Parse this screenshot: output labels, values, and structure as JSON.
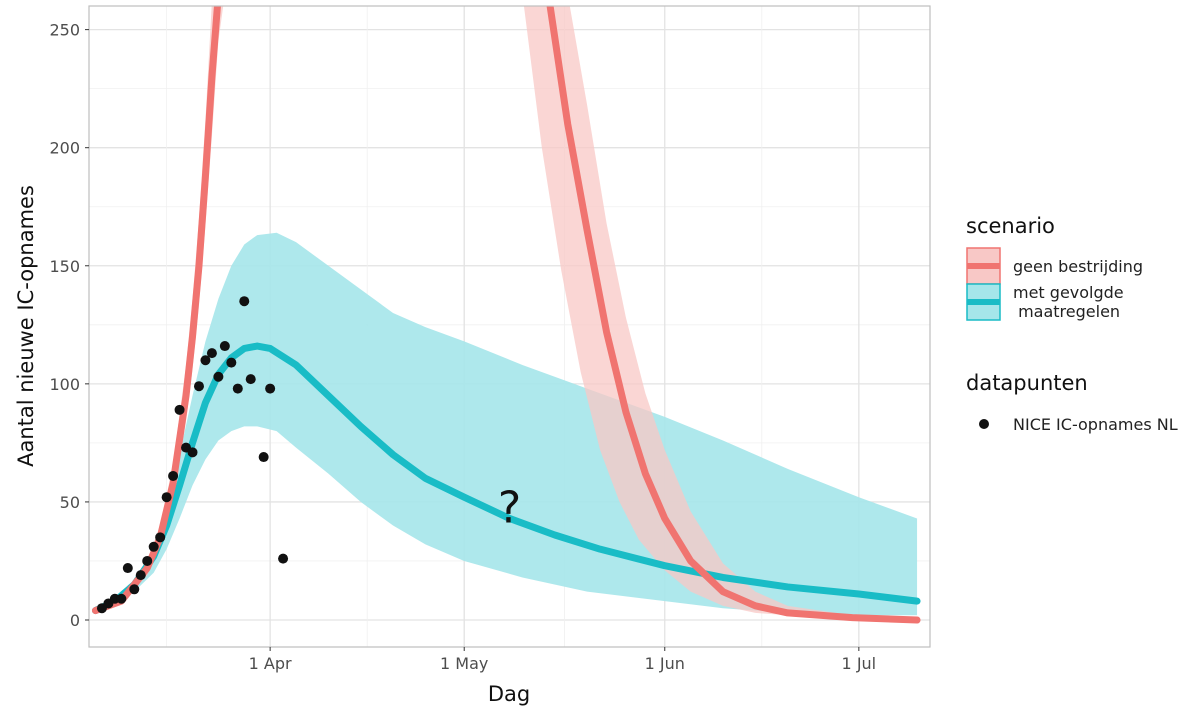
{
  "chart_data": {
    "type": "line",
    "xlabel": "Dag",
    "ylabel": "Aantal nieuwe IC-opnames",
    "x_type": "date",
    "xlim": [
      "2020-03-04",
      "2020-07-12"
    ],
    "ylim": [
      0,
      260
    ],
    "grid": true,
    "x_ticks": [
      {
        "date": "2020-04-01",
        "label": "1 Apr"
      },
      {
        "date": "2020-05-01",
        "label": "1 May"
      },
      {
        "date": "2020-06-01",
        "label": "1 Jun"
      },
      {
        "date": "2020-07-01",
        "label": "1 Jul"
      }
    ],
    "y_ticks": [
      0,
      50,
      100,
      150,
      200,
      250
    ],
    "annotation": "?",
    "annotation_at": {
      "x": "2020-05-08",
      "y": 48
    },
    "legend_position": "right",
    "legend": [
      {
        "title": "scenario",
        "entries": [
          {
            "label": "geen bestrijding",
            "color": "#f07470",
            "fill": "#f8c8c6"
          },
          {
            "label": "met gevolgde\n maatregelen",
            "color": "#19bcc6",
            "fill": "#a5e6ea"
          }
        ]
      },
      {
        "title": "datapunten",
        "entries": [
          {
            "label": "NICE IC-opnames NL",
            "color": "#111111"
          }
        ]
      }
    ],
    "series": [
      {
        "name": "geen bestrijding",
        "color": "#f07470",
        "band_color": "#f8c8c6",
        "segments": [
          {
            "line": [
              [
                "2020-03-05",
                4
              ],
              [
                "2020-03-09",
                8
              ],
              [
                "2020-03-13",
                22
              ],
              [
                "2020-03-15",
                35
              ],
              [
                "2020-03-17",
                58
              ],
              [
                "2020-03-19",
                95
              ],
              [
                "2020-03-20",
                120
              ],
              [
                "2020-03-21",
                150
              ],
              [
                "2020-03-22",
                188
              ],
              [
                "2020-03-23",
                230
              ],
              [
                "2020-03-24",
                265
              ]
            ],
            "upper": [
              [
                "2020-03-05",
                5
              ],
              [
                "2020-03-09",
                10
              ],
              [
                "2020-03-13",
                25
              ],
              [
                "2020-03-15",
                40
              ],
              [
                "2020-03-17",
                66
              ],
              [
                "2020-03-19",
                108
              ],
              [
                "2020-03-20",
                136
              ],
              [
                "2020-03-21",
                170
              ],
              [
                "2020-03-22",
                212
              ],
              [
                "2020-03-23",
                262
              ]
            ],
            "lower": [
              [
                "2020-03-05",
                3
              ],
              [
                "2020-03-09",
                7
              ],
              [
                "2020-03-13",
                19
              ],
              [
                "2020-03-15",
                30
              ],
              [
                "2020-03-17",
                50
              ],
              [
                "2020-03-19",
                84
              ],
              [
                "2020-03-20",
                106
              ],
              [
                "2020-03-21",
                133
              ],
              [
                "2020-03-22",
                167
              ],
              [
                "2020-03-23",
                205
              ],
              [
                "2020-03-24",
                245
              ],
              [
                "2020-03-25",
                265
              ]
            ]
          },
          {
            "line": [
              [
                "2020-05-14",
                265
              ],
              [
                "2020-05-17",
                210
              ],
              [
                "2020-05-20",
                165
              ],
              [
                "2020-05-23",
                122
              ],
              [
                "2020-05-26",
                88
              ],
              [
                "2020-05-29",
                62
              ],
              [
                "2020-06-01",
                43
              ],
              [
                "2020-06-05",
                25
              ],
              [
                "2020-06-10",
                12
              ],
              [
                "2020-06-15",
                6
              ],
              [
                "2020-06-20",
                3
              ],
              [
                "2020-06-30",
                1
              ],
              [
                "2020-07-10",
                0
              ]
            ],
            "upper": [
              [
                "2020-05-17",
                265
              ],
              [
                "2020-05-20",
                218
              ],
              [
                "2020-05-23",
                168
              ],
              [
                "2020-05-26",
                128
              ],
              [
                "2020-05-29",
                96
              ],
              [
                "2020-06-01",
                72
              ],
              [
                "2020-06-05",
                46
              ],
              [
                "2020-06-10",
                24
              ],
              [
                "2020-06-15",
                12
              ],
              [
                "2020-06-20",
                6
              ],
              [
                "2020-06-30",
                2
              ],
              [
                "2020-07-10",
                1
              ]
            ],
            "lower": [
              [
                "2020-05-10",
                265
              ],
              [
                "2020-05-13",
                200
              ],
              [
                "2020-05-16",
                148
              ],
              [
                "2020-05-19",
                105
              ],
              [
                "2020-05-22",
                72
              ],
              [
                "2020-05-25",
                50
              ],
              [
                "2020-05-28",
                34
              ],
              [
                "2020-06-01",
                21
              ],
              [
                "2020-06-05",
                12
              ],
              [
                "2020-06-10",
                6
              ],
              [
                "2020-06-15",
                3
              ],
              [
                "2020-06-30",
                0
              ],
              [
                "2020-07-10",
                0
              ]
            ]
          }
        ]
      },
      {
        "name": "met gevolgde\n maatregelen",
        "color": "#19bcc6",
        "band_color": "#a5e6ea",
        "line": [
          [
            "2020-03-05",
            4
          ],
          [
            "2020-03-08",
            8
          ],
          [
            "2020-03-11",
            15
          ],
          [
            "2020-03-14",
            27
          ],
          [
            "2020-03-16",
            40
          ],
          [
            "2020-03-18",
            57
          ],
          [
            "2020-03-20",
            75
          ],
          [
            "2020-03-22",
            92
          ],
          [
            "2020-03-24",
            104
          ],
          [
            "2020-03-26",
            111
          ],
          [
            "2020-03-28",
            115
          ],
          [
            "2020-03-30",
            116
          ],
          [
            "2020-04-01",
            115
          ],
          [
            "2020-04-05",
            108
          ],
          [
            "2020-04-10",
            95
          ],
          [
            "2020-04-15",
            82
          ],
          [
            "2020-04-20",
            70
          ],
          [
            "2020-04-25",
            60
          ],
          [
            "2020-05-01",
            52
          ],
          [
            "2020-05-08",
            43
          ],
          [
            "2020-05-15",
            36
          ],
          [
            "2020-05-22",
            30
          ],
          [
            "2020-06-01",
            23
          ],
          [
            "2020-06-10",
            18
          ],
          [
            "2020-06-20",
            14
          ],
          [
            "2020-07-01",
            11
          ],
          [
            "2020-07-10",
            8
          ]
        ],
        "upper": [
          [
            "2020-03-05",
            5
          ],
          [
            "2020-03-08",
            9
          ],
          [
            "2020-03-11",
            17
          ],
          [
            "2020-03-14",
            30
          ],
          [
            "2020-03-16",
            47
          ],
          [
            "2020-03-18",
            70
          ],
          [
            "2020-03-20",
            95
          ],
          [
            "2020-03-22",
            118
          ],
          [
            "2020-03-24",
            136
          ],
          [
            "2020-03-26",
            150
          ],
          [
            "2020-03-28",
            159
          ],
          [
            "2020-03-30",
            163
          ],
          [
            "2020-04-02",
            164
          ],
          [
            "2020-04-05",
            160
          ],
          [
            "2020-04-10",
            150
          ],
          [
            "2020-04-15",
            140
          ],
          [
            "2020-04-20",
            130
          ],
          [
            "2020-04-25",
            124
          ],
          [
            "2020-05-01",
            118
          ],
          [
            "2020-05-10",
            108
          ],
          [
            "2020-05-20",
            98
          ],
          [
            "2020-06-01",
            86
          ],
          [
            "2020-06-10",
            76
          ],
          [
            "2020-06-20",
            64
          ],
          [
            "2020-07-01",
            52
          ],
          [
            "2020-07-10",
            43
          ]
        ],
        "lower": [
          [
            "2020-03-05",
            3
          ],
          [
            "2020-03-08",
            6
          ],
          [
            "2020-03-11",
            12
          ],
          [
            "2020-03-14",
            20
          ],
          [
            "2020-03-16",
            30
          ],
          [
            "2020-03-18",
            43
          ],
          [
            "2020-03-20",
            57
          ],
          [
            "2020-03-22",
            68
          ],
          [
            "2020-03-24",
            76
          ],
          [
            "2020-03-26",
            80
          ],
          [
            "2020-03-28",
            82
          ],
          [
            "2020-03-30",
            82
          ],
          [
            "2020-04-02",
            80
          ],
          [
            "2020-04-05",
            73
          ],
          [
            "2020-04-10",
            62
          ],
          [
            "2020-04-15",
            50
          ],
          [
            "2020-04-20",
            40
          ],
          [
            "2020-04-25",
            32
          ],
          [
            "2020-05-01",
            25
          ],
          [
            "2020-05-10",
            18
          ],
          [
            "2020-05-20",
            12
          ],
          [
            "2020-06-01",
            8
          ],
          [
            "2020-06-10",
            5
          ],
          [
            "2020-06-20",
            3
          ],
          [
            "2020-07-01",
            2
          ],
          [
            "2020-07-10",
            2
          ]
        ]
      }
    ],
    "points": {
      "name": "NICE IC-opnames NL",
      "color": "#111111",
      "data": [
        [
          "2020-03-06",
          5
        ],
        [
          "2020-03-07",
          7
        ],
        [
          "2020-03-08",
          9
        ],
        [
          "2020-03-09",
          9
        ],
        [
          "2020-03-10",
          22
        ],
        [
          "2020-03-11",
          13
        ],
        [
          "2020-03-12",
          19
        ],
        [
          "2020-03-13",
          25
        ],
        [
          "2020-03-14",
          31
        ],
        [
          "2020-03-15",
          35
        ],
        [
          "2020-03-16",
          52
        ],
        [
          "2020-03-17",
          61
        ],
        [
          "2020-03-18",
          89
        ],
        [
          "2020-03-19",
          73
        ],
        [
          "2020-03-20",
          71
        ],
        [
          "2020-03-21",
          99
        ],
        [
          "2020-03-22",
          110
        ],
        [
          "2020-03-23",
          113
        ],
        [
          "2020-03-24",
          103
        ],
        [
          "2020-03-25",
          116
        ],
        [
          "2020-03-26",
          109
        ],
        [
          "2020-03-27",
          98
        ],
        [
          "2020-03-28",
          135
        ],
        [
          "2020-03-29",
          102
        ],
        [
          "2020-03-31",
          69
        ],
        [
          "2020-04-01",
          98
        ],
        [
          "2020-04-03",
          26
        ]
      ]
    }
  }
}
